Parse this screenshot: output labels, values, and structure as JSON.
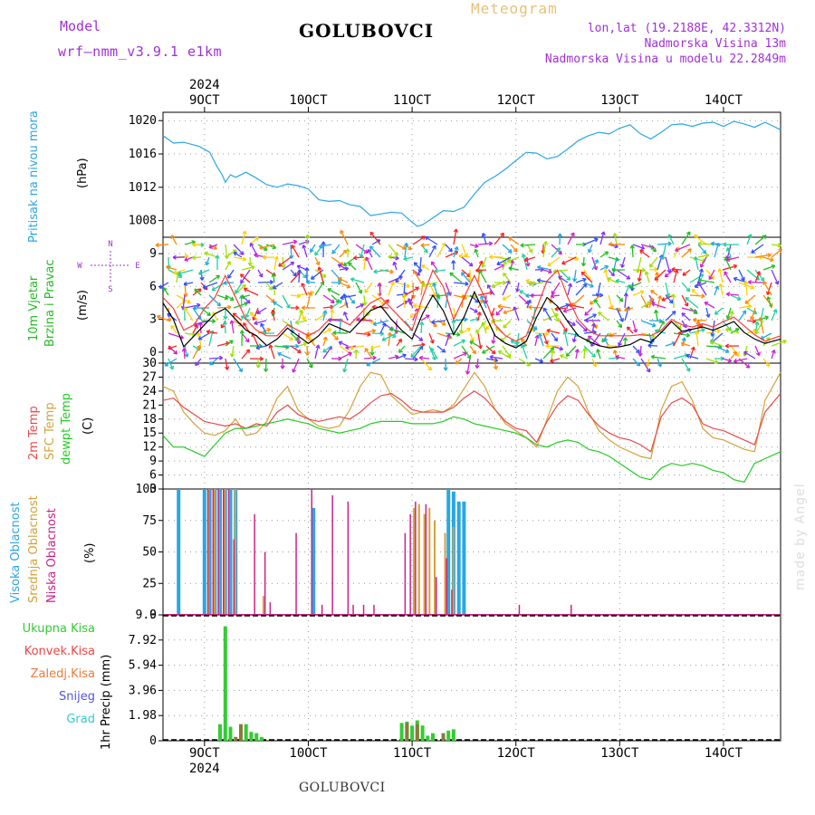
{
  "header": {
    "model_label": "Model",
    "model_name": "wrf—nmm_v3.9.1  e1km",
    "station": "GOLUBOVCI",
    "chart_title": "Meteogram",
    "lonlat": "lon,lat (19.2188E, 42.3312N)",
    "elev": "Nadmorska Visina 13m",
    "elev_model": "Nadmorska Visina u modelu 22.2849m"
  },
  "footer": {
    "station": "GOLUBOVCI",
    "watermark": "made by Angel"
  },
  "colors": {
    "pressure": "#2aa6e6",
    "wind_speed": "#000000",
    "wind_gust": "#ff3a3a",
    "temp2m": "#e84a4a",
    "sfc_temp": "#d4a23a",
    "dewpt": "#22cc22",
    "cloud_high": "#2aa6e6",
    "cloud_mid": "#d4a23a",
    "cloud_low": "#cc2288",
    "precip_total": "#33cc33",
    "precip_conv": "#ee4444",
    "precip_frz": "#ee7a33",
    "snow": "#5555dd",
    "graupel": "#33cccc",
    "axis_label_purple": "#a030d8"
  },
  "chart_data": {
    "type": "line",
    "x_axis": {
      "top_year": "2024",
      "bottom_year": "2024",
      "ticks": [
        "9OCT",
        "10OCT",
        "11OCT",
        "12OCT",
        "13OCT",
        "14OCT"
      ],
      "range_days": [
        8.6,
        14.55
      ]
    },
    "panels": {
      "pressure": {
        "label": "Pritisak na nivou mora",
        "unit": "(hPa)",
        "ylim": [
          1006,
          1021
        ],
        "yticks": [
          "1008",
          "1012",
          "1016",
          "1020"
        ],
        "x": [
          8.6,
          8.7,
          8.8,
          8.95,
          9.05,
          9.12,
          9.17,
          9.2,
          9.25,
          9.3,
          9.4,
          9.5,
          9.6,
          9.7,
          9.8,
          9.9,
          10.0,
          10.1,
          10.2,
          10.3,
          10.4,
          10.5,
          10.6,
          10.7,
          10.8,
          10.9,
          11.0,
          11.05,
          11.1,
          11.2,
          11.3,
          11.4,
          11.5,
          11.6,
          11.7,
          11.8,
          11.9,
          12.0,
          12.1,
          12.2,
          12.3,
          12.4,
          12.5,
          12.6,
          12.7,
          12.8,
          12.9,
          13.0,
          13.1,
          13.2,
          13.3,
          13.4,
          13.5,
          13.6,
          13.7,
          13.8,
          13.9,
          14.0,
          14.1,
          14.2,
          14.3,
          14.4,
          14.55
        ],
        "y": [
          1018.2,
          1017.3,
          1017.4,
          1016.9,
          1016.2,
          1014.5,
          1013.5,
          1012.6,
          1013.5,
          1013.2,
          1013.8,
          1013.1,
          1012.3,
          1012.0,
          1012.4,
          1012.2,
          1011.8,
          1010.5,
          1010.3,
          1010.4,
          1009.9,
          1009.7,
          1008.6,
          1008.8,
          1009.0,
          1008.9,
          1007.8,
          1007.3,
          1007.5,
          1008.3,
          1009.2,
          1009.1,
          1009.6,
          1011.2,
          1012.6,
          1013.3,
          1014.2,
          1015.2,
          1016.2,
          1016.1,
          1015.4,
          1015.7,
          1016.6,
          1017.6,
          1018.2,
          1018.6,
          1018.4,
          1019.1,
          1019.5,
          1018.4,
          1017.8,
          1018.6,
          1019.5,
          1019.6,
          1019.3,
          1019.7,
          1019.8,
          1019.3,
          1019.9,
          1019.6,
          1019.2,
          1019.8,
          1018.9
        ]
      },
      "wind": {
        "label_line1": "10m Vjetar",
        "label_line2": "Brzina i Pravac",
        "unit": "(m/s)",
        "compass_n": "N",
        "compass_e": "E",
        "compass_w": "W",
        "compass_s": "S",
        "ylim": [
          -1,
          10.5
        ],
        "yticks": [
          "0",
          "3",
          "6",
          "9"
        ],
        "speed_x": [
          8.6,
          8.7,
          8.8,
          8.9,
          9.0,
          9.1,
          9.2,
          9.3,
          9.4,
          9.5,
          9.6,
          9.7,
          9.8,
          9.9,
          10.0,
          10.1,
          10.2,
          10.3,
          10.4,
          10.5,
          10.6,
          10.7,
          10.8,
          10.9,
          11.0,
          11.1,
          11.2,
          11.3,
          11.4,
          11.5,
          11.6,
          11.7,
          11.8,
          11.9,
          12.0,
          12.1,
          12.2,
          12.3,
          12.4,
          12.5,
          12.6,
          12.7,
          12.8,
          12.9,
          13.0,
          13.1,
          13.2,
          13.3,
          13.4,
          13.5,
          13.6,
          13.7,
          13.8,
          13.9,
          14.0,
          14.1,
          14.2,
          14.3,
          14.4,
          14.55
        ],
        "speed_y": [
          4.5,
          3.0,
          0.5,
          1.5,
          2.5,
          3.5,
          4.0,
          3.0,
          2.0,
          1.5,
          0.6,
          1.2,
          2.2,
          1.5,
          0.8,
          1.5,
          2.6,
          2.2,
          1.8,
          2.8,
          3.8,
          4.2,
          3.0,
          2.0,
          1.2,
          3.5,
          5.2,
          3.8,
          1.6,
          3.2,
          5.5,
          3.5,
          1.5,
          0.8,
          0.4,
          1.0,
          3.2,
          5.0,
          4.2,
          2.8,
          1.5,
          1.0,
          0.6,
          0.4,
          0.5,
          0.7,
          1.2,
          0.9,
          1.8,
          2.8,
          1.9,
          2.1,
          2.3,
          2.0,
          2.4,
          2.8,
          1.8,
          1.2,
          0.8,
          1.2
        ],
        "gust_y": [
          5.0,
          4.0,
          2.0,
          2.5,
          4.0,
          5.0,
          7.0,
          5.0,
          3.0,
          2.0,
          1.5,
          1.5,
          2.5,
          2.0,
          1.5,
          2.0,
          3.0,
          3.0,
          2.5,
          3.5,
          4.5,
          5.0,
          4.0,
          3.0,
          2.0,
          5.0,
          7.5,
          6.0,
          3.0,
          5.0,
          7.0,
          5.0,
          2.5,
          1.5,
          1.0,
          1.5,
          4.0,
          6.5,
          7.5,
          5.0,
          3.0,
          2.0,
          1.5,
          1.5,
          1.5,
          1.5,
          1.6,
          1.5,
          2.0,
          3.0,
          2.5,
          2.3,
          2.6,
          2.3,
          2.8,
          3.2,
          2.4,
          1.6,
          1.0,
          1.5
        ]
      },
      "temperature": {
        "label_t2m": "2m Temp",
        "label_sfc": "SFC Temp",
        "label_dew": "dewpt Temp",
        "unit": "(C)",
        "ylim": [
          3,
          30
        ],
        "yticks": [
          "3",
          "6",
          "9",
          "12",
          "15",
          "18",
          "21",
          "24",
          "27",
          "30"
        ],
        "x": [
          8.6,
          8.7,
          8.8,
          8.9,
          9.0,
          9.1,
          9.2,
          9.3,
          9.4,
          9.5,
          9.6,
          9.7,
          9.8,
          9.9,
          10.0,
          10.1,
          10.2,
          10.3,
          10.4,
          10.5,
          10.6,
          10.7,
          10.8,
          10.9,
          11.0,
          11.1,
          11.2,
          11.3,
          11.4,
          11.5,
          11.6,
          11.7,
          11.8,
          11.9,
          12.0,
          12.1,
          12.2,
          12.3,
          12.4,
          12.5,
          12.6,
          12.7,
          12.8,
          12.9,
          13.0,
          13.1,
          13.2,
          13.3,
          13.4,
          13.5,
          13.6,
          13.7,
          13.8,
          13.9,
          14.0,
          14.1,
          14.2,
          14.3,
          14.4,
          14.55
        ],
        "t2m": [
          22.0,
          22.5,
          20.5,
          19.0,
          17.5,
          17.0,
          16.5,
          17.0,
          16.0,
          17.0,
          16.5,
          19.5,
          21.0,
          19.0,
          18.0,
          17.5,
          18.0,
          18.5,
          18.0,
          19.5,
          21.5,
          23.0,
          23.5,
          22.0,
          20.0,
          19.5,
          19.5,
          19.5,
          20.5,
          22.5,
          24.0,
          22.5,
          20.0,
          17.5,
          16.0,
          15.5,
          13.0,
          17.5,
          21.0,
          23.0,
          22.0,
          19.0,
          16.5,
          15.0,
          14.0,
          13.5,
          12.5,
          11.0,
          18.5,
          21.5,
          22.5,
          21.0,
          17.0,
          16.0,
          15.5,
          14.5,
          13.5,
          12.5,
          19.5,
          23.5
        ],
        "sfc": [
          25.0,
          24.0,
          19.5,
          17.0,
          15.0,
          14.5,
          15.5,
          18.0,
          14.5,
          15.0,
          17.5,
          22.5,
          25.0,
          20.0,
          18.0,
          16.5,
          16.0,
          16.5,
          20.0,
          25.0,
          28.0,
          27.5,
          23.0,
          21.0,
          19.0,
          19.5,
          20.0,
          19.5,
          21.0,
          24.5,
          28.0,
          25.0,
          20.0,
          17.0,
          15.5,
          14.0,
          12.0,
          18.0,
          24.0,
          27.0,
          25.0,
          19.5,
          15.5,
          13.5,
          12.0,
          11.0,
          10.0,
          9.5,
          20.0,
          25.0,
          26.0,
          22.0,
          16.0,
          14.0,
          13.5,
          12.5,
          11.5,
          11.0,
          22.0,
          28.0
        ],
        "dew": [
          14.5,
          12.0,
          12.0,
          11.0,
          10.0,
          12.5,
          15.0,
          16.0,
          16.0,
          16.5,
          17.0,
          17.5,
          18.0,
          17.5,
          17.0,
          16.0,
          15.5,
          15.0,
          15.5,
          16.0,
          17.0,
          17.5,
          17.5,
          17.5,
          17.0,
          17.0,
          17.0,
          17.5,
          18.5,
          18.0,
          17.0,
          16.5,
          16.0,
          15.5,
          15.0,
          14.0,
          12.5,
          12.0,
          13.0,
          13.5,
          13.0,
          11.5,
          11.0,
          10.0,
          8.5,
          7.0,
          5.5,
          5.0,
          7.5,
          8.5,
          8.0,
          8.5,
          8.0,
          7.0,
          6.5,
          5.0,
          4.5,
          8.5,
          9.5,
          11.0
        ]
      },
      "clouds": {
        "label_high": "Visoka Oblacnost",
        "label_mid": "Srednja Oblacnost",
        "label_low": "Niska Oblacnost",
        "unit": "(%)",
        "ylim": [
          0,
          100
        ],
        "yticks": [
          "0",
          "25",
          "50",
          "75",
          "100"
        ],
        "high": {
          "x": [
            8.75,
            9.0,
            9.05,
            9.1,
            9.15,
            9.2,
            9.25,
            9.3,
            10.05,
            11.35,
            11.4,
            11.45,
            11.5
          ],
          "y": [
            100,
            100,
            100,
            100,
            100,
            100,
            100,
            100,
            85,
            100,
            98,
            90,
            90
          ]
        },
        "mid": {
          "x": [
            9.02,
            9.08,
            9.12,
            9.18,
            9.22,
            9.28,
            9.55,
            11.0,
            11.05,
            11.1,
            11.15,
            11.2,
            11.3,
            11.38
          ],
          "y": [
            100,
            100,
            100,
            100,
            100,
            100,
            15,
            85,
            88,
            80,
            85,
            75,
            65,
            70
          ]
        },
        "low": {
          "x": [
            9.0,
            9.05,
            9.1,
            9.15,
            9.2,
            9.25,
            9.45,
            9.55,
            9.6,
            9.85,
            10.0,
            10.1,
            10.2,
            10.35,
            10.4,
            10.5,
            10.6,
            10.9,
            10.95,
            11.0,
            11.1,
            11.2,
            11.3,
            11.35,
            12.0,
            12.5
          ],
          "y": [
            100,
            100,
            100,
            100,
            100,
            60,
            80,
            50,
            10,
            65,
            100,
            8,
            95,
            90,
            8,
            8,
            8,
            65,
            80,
            90,
            88,
            30,
            45,
            20,
            8,
            8
          ]
        }
      },
      "precip": {
        "label_total": "Ukupna Kisa",
        "label_conv": "Konvek.Kisa",
        "label_frz": "Zaledj.Kisa",
        "label_snow": "Snijeg",
        "label_grad": "Grad",
        "unit": "1hr Precip (mm)",
        "ylim": [
          0,
          9.9
        ],
        "yticks": [
          "0",
          "1.98",
          "3.96",
          "5.94",
          "7.92",
          "9.9"
        ],
        "total": {
          "x": [
            9.15,
            9.2,
            9.25,
            9.4,
            9.45,
            9.5,
            9.55,
            10.9,
            10.95,
            11.0,
            11.05,
            11.1,
            11.15,
            11.2,
            11.3,
            11.35,
            11.4
          ],
          "y": [
            1.3,
            9.0,
            1.1,
            1.3,
            0.7,
            0.6,
            0.3,
            1.4,
            1.5,
            1.2,
            1.6,
            1.2,
            0.4,
            0.6,
            0.5,
            0.8,
            0.9
          ]
        },
        "conv": {
          "x": [
            9.3,
            9.35,
            10.95,
            11.05,
            11.3
          ],
          "y": [
            0.3,
            1.3,
            1.4,
            1.3,
            0.6
          ]
        }
      }
    }
  }
}
